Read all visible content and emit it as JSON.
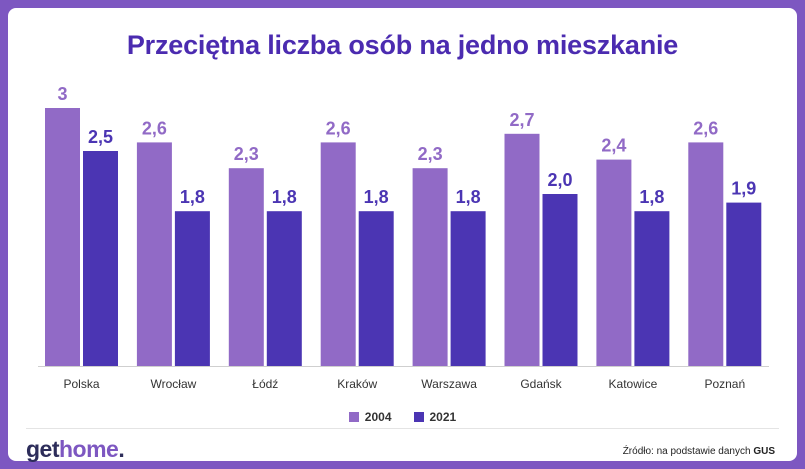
{
  "title": "Przeciętna liczba osób na jedno mieszkanie",
  "colors": {
    "frame": "#7d57c1",
    "series_2004": "#916ac6",
    "series_2021": "#4b35b3",
    "title": "#4b2bb0"
  },
  "chart_data": {
    "type": "bar",
    "categories": [
      "Polska",
      "Wrocław",
      "Łódź",
      "Kraków",
      "Warszawa",
      "Gdańsk",
      "Katowice",
      "Poznań"
    ],
    "series": [
      {
        "name": "2004",
        "values": [
          3.0,
          2.6,
          2.3,
          2.6,
          2.3,
          2.7,
          2.4,
          2.6
        ],
        "labels": [
          "3",
          "2,6",
          "2,3",
          "2,6",
          "2,3",
          "2,7",
          "2,4",
          "2,6"
        ]
      },
      {
        "name": "2021",
        "values": [
          2.5,
          1.8,
          1.8,
          1.8,
          1.8,
          2.0,
          1.8,
          1.9
        ],
        "labels": [
          "2,5",
          "1,8",
          "1,8",
          "1,8",
          "1,8",
          "2,0",
          "1,8",
          "1,9"
        ]
      }
    ],
    "ylim": [
      0,
      3
    ],
    "grid": false,
    "legend": "bottom"
  },
  "legend": {
    "items": [
      "2004",
      "2021"
    ]
  },
  "logo": {
    "main": "get",
    "accent": "home",
    "dot": "."
  },
  "source": {
    "prefix": "Źródło: na podstawie danych",
    "name": "GUS"
  }
}
